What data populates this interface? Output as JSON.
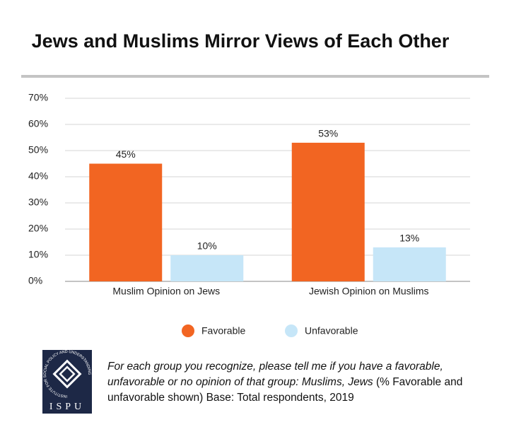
{
  "chart_data": {
    "type": "bar",
    "title": "Jews and Muslims Mirror Views of Each Other",
    "categories": [
      "Muslim Opinion on Jews",
      "Jewish Opinion on Muslims"
    ],
    "series": [
      {
        "name": "Favorable",
        "color": "#f26522",
        "values": [
          45,
          53
        ],
        "value_labels": [
          "45%",
          "53%"
        ]
      },
      {
        "name": "Unfavorable",
        "color": "#c6e6f8",
        "values": [
          10,
          13
        ],
        "value_labels": [
          "10%",
          "13%"
        ]
      }
    ],
    "ylim": [
      0,
      70
    ],
    "yticks": [
      {
        "value": 0,
        "label": "0%"
      },
      {
        "value": 10,
        "label": "10%"
      },
      {
        "value": 20,
        "label": "20%"
      },
      {
        "value": 30,
        "label": "30%"
      },
      {
        "value": 40,
        "label": "40%"
      },
      {
        "value": 50,
        "label": "50%"
      },
      {
        "value": 60,
        "label": "60%"
      },
      {
        "value": 70,
        "label": "70%"
      }
    ],
    "grid": true,
    "legend": "bottom"
  },
  "note": {
    "question": "For each group you recognize, please tell me if you have a favorable, unfavorable or no opinion of that group: Muslims, Jews",
    "base": "(% Favorable and unfavorable shown) Base: Total respondents, 2019"
  },
  "logo": {
    "name": "ISPU",
    "ring": "INSTITUTE FOR SOCIAL POLICY AND UNDERSTANDING"
  }
}
